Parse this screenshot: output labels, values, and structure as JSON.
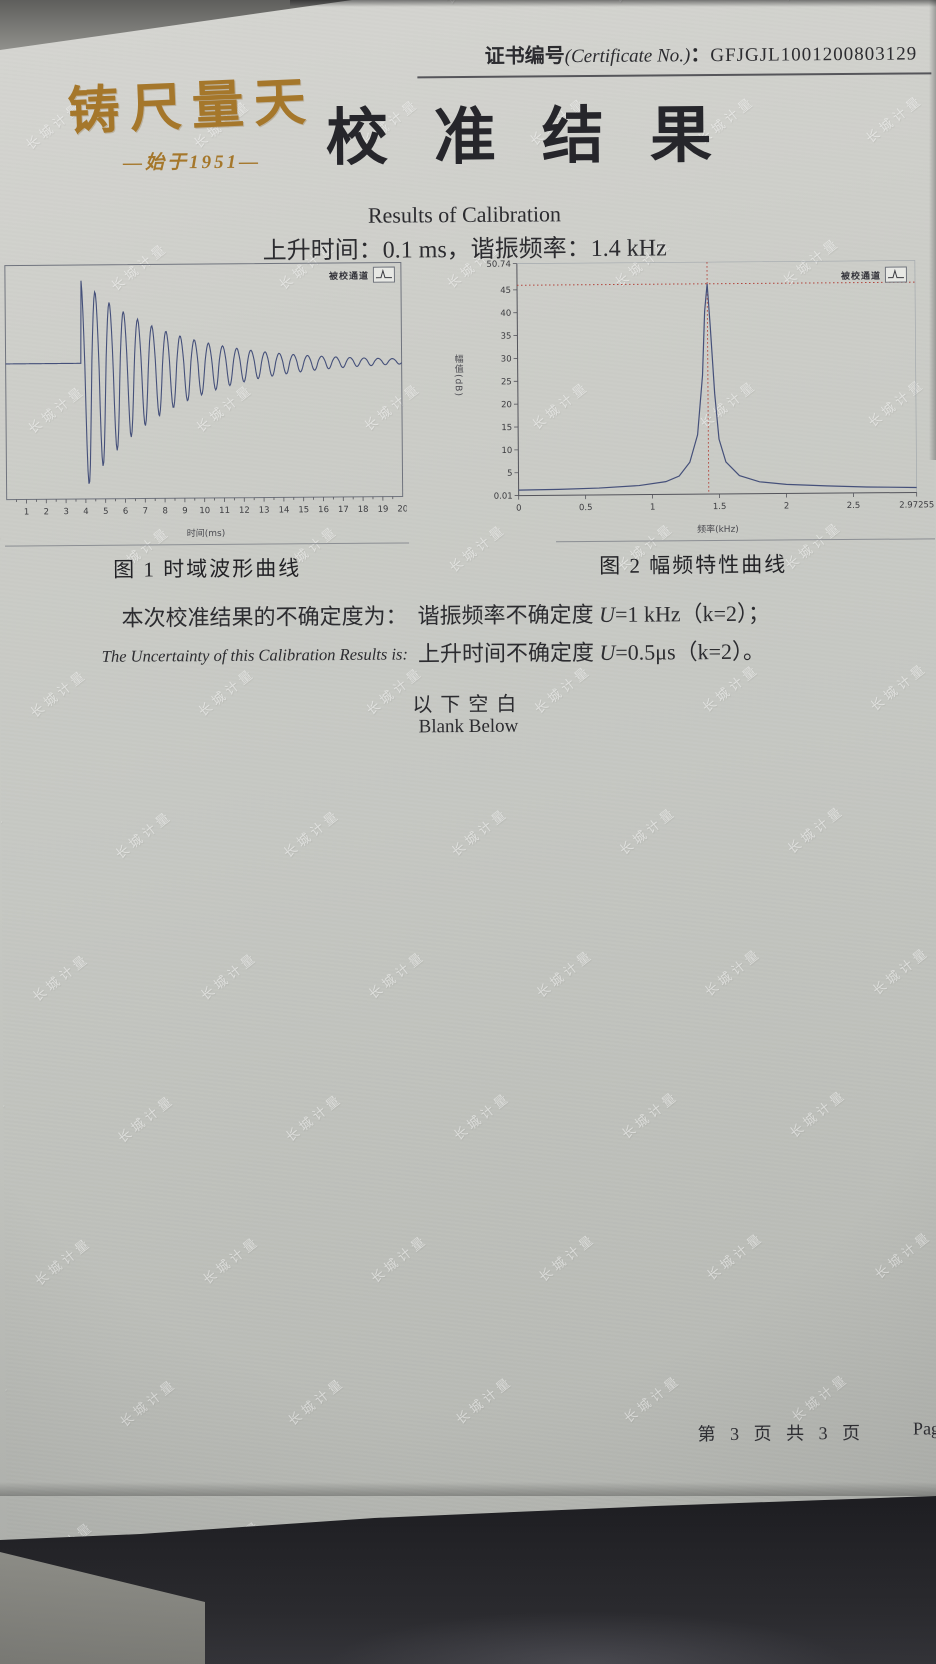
{
  "header": {
    "cert_label_zh": "证书编号",
    "cert_label_en": "(Certificate No.)",
    "cert_sep": "：",
    "cert_no": "GFJGJL1001200803129",
    "logo_main": "铸尺量天",
    "logo_sub": "—始于1951—",
    "title": "校准结果",
    "subtitle_en": "Results of Calibration",
    "result_line": "上升时间：0.1 ms，谐振频率：1.4 kHz"
  },
  "chart_data": [
    {
      "type": "line",
      "title": "图 1 时域波形曲线",
      "xlabel": "时间(ms)",
      "channel_label": "被校通道",
      "xlim": [
        0,
        20
      ],
      "x_ticks": [
        1,
        2,
        3,
        4,
        5,
        6,
        7,
        8,
        9,
        10,
        11,
        12,
        13,
        14,
        15,
        16,
        17,
        18,
        19,
        20
      ],
      "grid": false,
      "series": [
        {
          "name": "时域波形",
          "model": "damped_sine",
          "baseline": 0,
          "start_ms": 3.82,
          "amplitude": 1,
          "frequency_khz": 1.4,
          "decay_per_ms": 0.23
        }
      ],
      "rise_time_ms": 0.1
    },
    {
      "type": "line",
      "title": "图 2 幅频特性曲线",
      "xlabel": "频率(kHz)",
      "ylabel": "幅值(dB)",
      "channel_label": "被校通道",
      "xlim": [
        0,
        2.97255
      ],
      "ylim": [
        0.01,
        50.74
      ],
      "x_ticks": [
        "0",
        "0.5",
        "1",
        "1.5",
        "2",
        "2.5",
        "2.97255"
      ],
      "y_ticks": [
        "50.74",
        "45",
        "40",
        "35",
        "30",
        "25",
        "20",
        "15",
        "10",
        "5",
        "0.01"
      ],
      "grid": false,
      "marker": {
        "x_khz": 1.42,
        "y": 46
      },
      "points": [
        [
          0,
          1.2
        ],
        [
          0.3,
          1.3
        ],
        [
          0.6,
          1.5
        ],
        [
          0.9,
          2.0
        ],
        [
          1.1,
          2.8
        ],
        [
          1.2,
          4
        ],
        [
          1.28,
          7
        ],
        [
          1.34,
          13
        ],
        [
          1.38,
          26
        ],
        [
          1.4,
          40
        ],
        [
          1.42,
          46
        ],
        [
          1.44,
          37
        ],
        [
          1.47,
          22
        ],
        [
          1.5,
          12
        ],
        [
          1.55,
          7
        ],
        [
          1.65,
          4
        ],
        [
          1.8,
          2.6
        ],
        [
          2.0,
          2.0
        ],
        [
          2.3,
          1.6
        ],
        [
          2.6,
          1.3
        ],
        [
          2.97255,
          1.1
        ]
      ],
      "resonance_khz": 1.4
    }
  ],
  "uncertainty": {
    "intro_zh": "本次校准结果的不确定度为：",
    "intro_en": "The Uncertainty of this Calibration Results is:",
    "line1_name": "谐振频率不确定度 ",
    "line1_formula": "U=1 kHz（k=2）；",
    "line2_name": "上升时间不确定度 ",
    "line2_formula": "U=0.5μs（k=2）。"
  },
  "blank": {
    "zh": "以下空白",
    "en": "Blank Below"
  },
  "footer": {
    "page_text": "第 3 页 共 3 页",
    "page_partial": "Pag"
  },
  "watermark": {
    "text": "长城计量"
  },
  "colors": {
    "gold": "#a5772b",
    "ink": "#26262b",
    "trace": "#45507a",
    "marker_red": "#b2453c",
    "paper": "#c8cac5"
  }
}
